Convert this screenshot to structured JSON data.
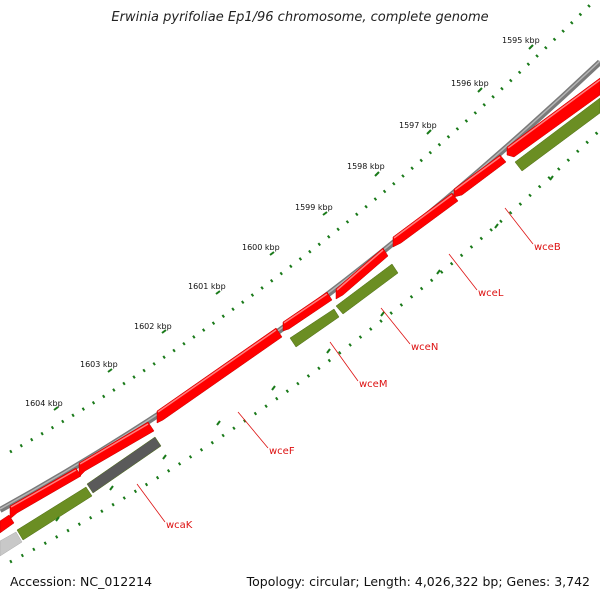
{
  "title": "Erwinia pyrifoliae Ep1/96 chromosome, complete genome",
  "footer": {
    "accession": "Accession: NC_012214",
    "summary": "Topology: circular; Length: 4,026,322 bp; Genes: 3,742"
  },
  "colors": {
    "forward_gene": "#ff0000",
    "reverse_gene": "#6b8e23",
    "other_feature": "#555555",
    "backbone": "#777777",
    "label": "#dd1111",
    "tick": "#1a7a1a"
  },
  "scale_labels": [
    "1595 kbp",
    "1596 kbp",
    "1597 kbp",
    "1598 kbp",
    "1599 kbp",
    "1600 kbp",
    "1601 kbp",
    "1602 kbp",
    "1603 kbp",
    "1604 kbp"
  ],
  "gene_labels": [
    "wceB",
    "wceL",
    "wceN",
    "wceM",
    "wceF",
    "wcaK"
  ]
}
